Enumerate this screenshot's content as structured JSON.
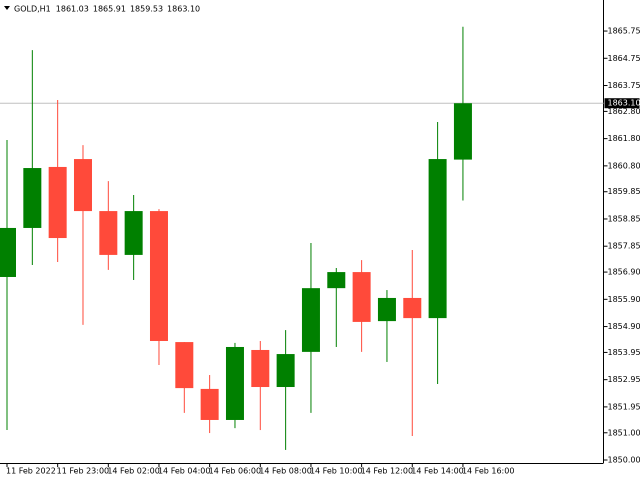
{
  "chart_data": {
    "type": "candlestick",
    "title": "GOLD,H1",
    "title_values": [
      "1861.03",
      "1865.91",
      "1859.53",
      "1863.10"
    ],
    "categories": [
      "11 Feb 2022",
      null,
      "11 Feb 23:00",
      null,
      "14 Feb 02:00",
      null,
      "14 Feb 04:00",
      null,
      "14 Feb 06:00",
      null,
      "14 Feb 08:00",
      null,
      "14 Feb 10:00",
      null,
      "14 Feb 12:00",
      null,
      "14 Feb 14:00",
      null,
      "14 Feb 16:00"
    ],
    "open": [
      1856.72,
      1858.52,
      1860.76,
      1861.05,
      1859.14,
      1857.53,
      1859.14,
      1854.33,
      1852.61,
      1851.47,
      1854.04,
      1852.68,
      1853.97,
      1856.31,
      1856.9,
      1855.1,
      1855.95,
      1855.21,
      1861.03
    ],
    "high": [
      1861.75,
      1865.05,
      1863.22,
      1861.56,
      1860.24,
      1859.73,
      1859.21,
      1854.33,
      1853.12,
      1854.3,
      1854.37,
      1854.77,
      1857.97,
      1857.05,
      1857.34,
      1856.24,
      1857.71,
      1862.41,
      1865.91
    ],
    "low": [
      1851.1,
      1857.16,
      1857.27,
      1854.96,
      1856.98,
      1856.61,
      1853.49,
      1851.73,
      1850.99,
      1851.17,
      1851.1,
      1850.37,
      1851.73,
      1854.15,
      1853.97,
      1853.6,
      1850.88,
      1852.79,
      1859.53
    ],
    "close": [
      1858.52,
      1860.72,
      1858.15,
      1859.14,
      1857.53,
      1859.14,
      1854.37,
      1852.64,
      1851.47,
      1854.15,
      1852.68,
      1853.89,
      1856.31,
      1856.9,
      1855.07,
      1855.95,
      1855.21,
      1861.05,
      1863.1
    ],
    "up_color": "#008000",
    "down_color": "#ff4a3a",
    "ylim": [
      1849.89,
      1866.89
    ],
    "yticks": [
      1865.75,
      1864.75,
      1863.75,
      {
        "value": 1862.8,
        "label": "1862.80"
      },
      {
        "value": 1861.8,
        "label": "1861.80"
      },
      {
        "value": 1860.8,
        "label": "1860.80"
      },
      1859.85,
      1858.85,
      1857.85,
      {
        "value": 1856.9,
        "label": "1856.90"
      },
      {
        "value": 1855.9,
        "label": "1855.90"
      },
      {
        "value": 1854.9,
        "label": "1854.90"
      },
      1853.95,
      1852.95,
      1851.95,
      {
        "value": 1851,
        "label": "1851.00"
      },
      {
        "value": 1850,
        "label": "1850.00"
      }
    ],
    "current_price": {
      "value": 1863.1,
      "label": "1863.10"
    },
    "grid": false
  }
}
